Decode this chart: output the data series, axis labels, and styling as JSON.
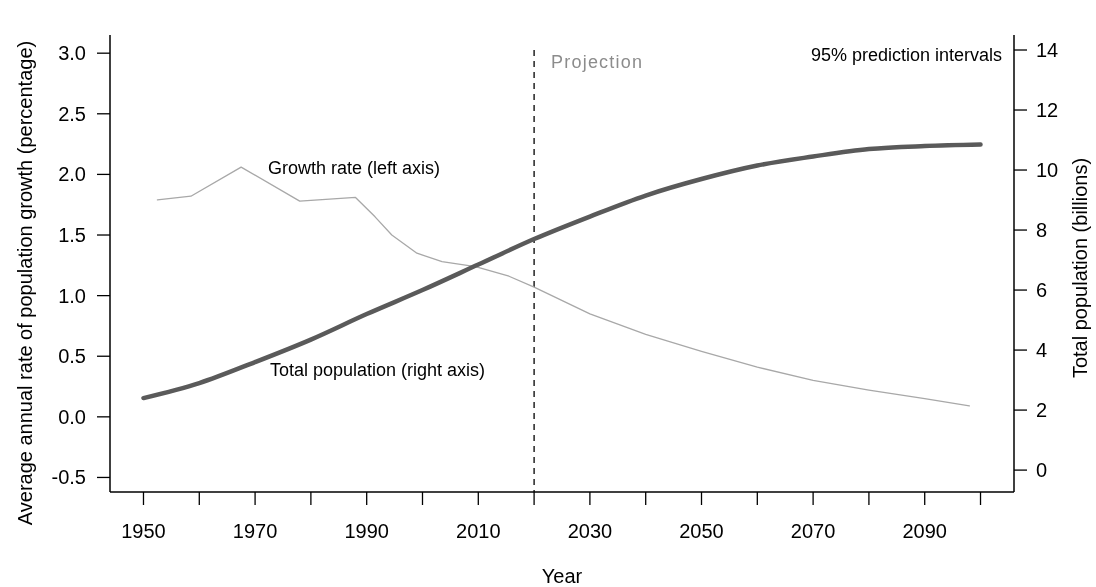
{
  "chart_data": {
    "type": "line",
    "xlabel": "Year",
    "ylabel": "Average annual rate of population growth (percentage)",
    "y2label": "Total population (billions)",
    "xlim": [
      1944,
      2106
    ],
    "xticks": [
      1950,
      {
        "value": 1960,
        "label": null
      },
      1970,
      {
        "value": 1980,
        "label": null
      },
      1990,
      {
        "value": 2000,
        "label": null
      },
      2010,
      {
        "value": 2020,
        "label": null
      },
      2030,
      {
        "value": 2040,
        "label": null
      },
      2050,
      {
        "value": 2060,
        "label": null
      },
      2070,
      {
        "value": 2080,
        "label": null
      },
      2090,
      {
        "value": 2100,
        "label": null
      }
    ],
    "ylim": [
      -0.62,
      3.15
    ],
    "yticks": [
      -0.5,
      {
        "value": 0,
        "label": "0.0"
      },
      0.5,
      {
        "value": 1,
        "label": "1.0"
      },
      1.5,
      {
        "value": 2,
        "label": "2.0"
      },
      2.5,
      {
        "value": 3,
        "label": "3.0"
      }
    ],
    "y2lim": [
      -0.73,
      14.5
    ],
    "y2ticks": [
      0,
      2,
      4,
      6,
      8,
      10,
      12,
      14
    ],
    "series": [
      {
        "name": "Growth rate (left axis)",
        "color": "#a8a8a8",
        "x": [
          1952.5,
          1958.5,
          1967.5,
          1978,
          1988,
          1991.5,
          1994.5,
          1999,
          2003.5,
          2009.5,
          2015.5,
          2020,
          2030,
          2040,
          2050,
          2060,
          2070,
          2080,
          2090,
          2098
        ],
        "values": [
          1.79,
          1.82,
          2.06,
          1.78,
          1.81,
          1.65,
          1.5,
          1.35,
          1.28,
          1.24,
          1.16,
          1.07,
          0.85,
          0.68,
          0.54,
          0.41,
          0.3,
          0.22,
          0.15,
          0.09
        ]
      },
      {
        "name": "Total population (right axis)",
        "color": "#5a5a5a",
        "axis": "y2",
        "x": [
          1950,
          1960,
          1970,
          1980,
          1990,
          2000,
          2010,
          2020,
          2030,
          2040,
          2050,
          2060,
          2070,
          2080,
          2090,
          2100
        ],
        "values": [
          2.4,
          2.9,
          3.6,
          4.35,
          5.2,
          6.0,
          6.85,
          7.7,
          8.45,
          9.15,
          9.7,
          10.15,
          10.45,
          10.7,
          10.8,
          10.85
        ]
      }
    ],
    "ref_lines": [
      {
        "axis": "x",
        "value": 2020,
        "label": "Projection",
        "line_style": "dashed",
        "color": "#000000"
      }
    ],
    "annotations": [
      "95% prediction intervals"
    ]
  }
}
